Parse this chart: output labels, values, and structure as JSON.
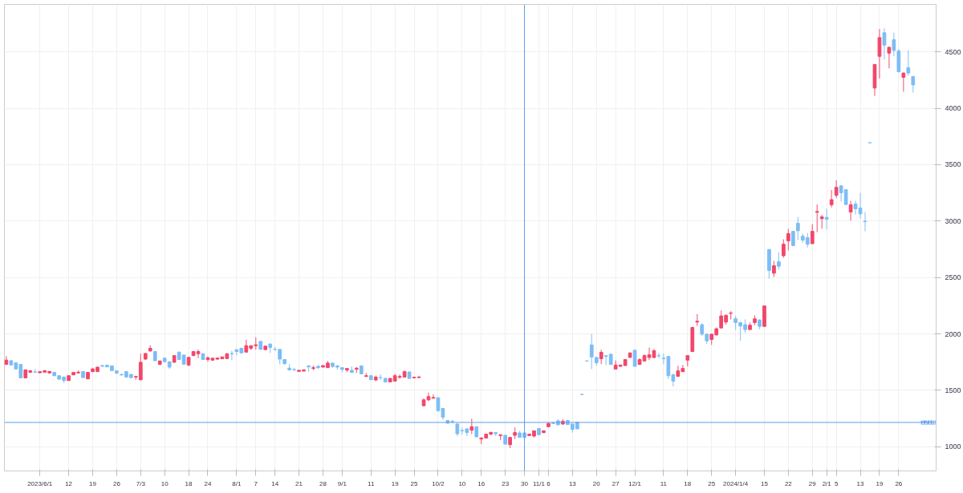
{
  "chart_data": {
    "type": "candlestick",
    "categories": [
      null,
      null,
      null,
      null,
      null,
      null,
      null,
      "2023/6/1",
      null,
      null,
      null,
      null,
      null,
      "12",
      null,
      null,
      null,
      null,
      "19",
      null,
      null,
      null,
      null,
      "26",
      null,
      null,
      null,
      null,
      "7/3",
      null,
      null,
      null,
      null,
      "10",
      null,
      null,
      null,
      null,
      "18",
      null,
      null,
      null,
      "24",
      null,
      null,
      null,
      null,
      null,
      "8/1",
      null,
      null,
      null,
      "7",
      null,
      null,
      null,
      "14",
      null,
      null,
      null,
      null,
      "21",
      null,
      null,
      null,
      null,
      "28",
      null,
      null,
      null,
      "9/1",
      null,
      null,
      null,
      null,
      null,
      "11",
      null,
      null,
      null,
      null,
      "19",
      null,
      null,
      null,
      "25",
      null,
      null,
      null,
      null,
      "10/2",
      null,
      null,
      null,
      null,
      "10",
      null,
      null,
      null,
      "16",
      null,
      null,
      null,
      null,
      "23",
      null,
      null,
      null,
      "30",
      null,
      null,
      "11/1",
      null,
      "6",
      null,
      null,
      null,
      null,
      "13",
      null,
      null,
      null,
      null,
      "20",
      null,
      null,
      null,
      "27",
      null,
      null,
      null,
      "12/1",
      null,
      null,
      null,
      null,
      null,
      "11",
      null,
      null,
      null,
      null,
      "18",
      null,
      null,
      null,
      null,
      "25",
      null,
      null,
      null,
      null,
      "2024/1/4",
      null,
      null,
      null,
      null,
      null,
      "15",
      null,
      null,
      null,
      null,
      "22",
      null,
      null,
      null,
      null,
      "29",
      null,
      null,
      "2/1",
      null,
      "5",
      null,
      null,
      null,
      null,
      "13",
      null,
      null,
      null,
      "19",
      null,
      null,
      null,
      "26",
      null,
      null,
      null
    ],
    "ohlc": [
      [
        1730,
        1804,
        1725,
        1768
      ],
      [
        1763,
        1768,
        1720,
        1725
      ],
      [
        1744,
        1749,
        1685,
        1690
      ],
      [
        1730,
        1735,
        1606,
        1611
      ],
      [
        1611,
        1685,
        1606,
        1682
      ],
      [
        1661,
        1682,
        1654,
        1673
      ],
      [
        1663,
        1690,
        1654,
        1661
      ],
      [
        1656,
        1670,
        1654,
        1666
      ],
      [
        1661,
        1680,
        1656,
        1675
      ],
      [
        1654,
        1670,
        1652,
        1668
      ],
      [
        1659,
        1666,
        1625,
        1630
      ],
      [
        1630,
        1635,
        1594,
        1599
      ],
      [
        1618,
        1625,
        1566,
        1587
      ],
      [
        1587,
        1632,
        1585,
        1630
      ],
      [
        1637,
        1661,
        1635,
        1659
      ],
      [
        1654,
        1678,
        1652,
        1661
      ],
      [
        1666,
        1670,
        1611,
        1613
      ],
      [
        1602,
        1661,
        1599,
        1659
      ],
      [
        1666,
        1701,
        1659,
        1690
      ],
      [
        1666,
        1708,
        1664,
        1706
      ],
      [
        1720,
        1725,
        1711,
        1713
      ],
      [
        1723,
        1725,
        1706,
        1708
      ],
      [
        1718,
        1720,
        1673,
        1675
      ],
      [
        1673,
        1678,
        1642,
        1654
      ],
      [
        1642,
        1645,
        1632,
        1637
      ],
      [
        1666,
        1670,
        1618,
        1618
      ],
      [
        1642,
        1645,
        1606,
        1613
      ],
      [
        1618,
        1630,
        1594,
        1623
      ],
      [
        1594,
        1825,
        1587,
        1749
      ],
      [
        1777,
        1830,
        1770,
        1827
      ],
      [
        1849,
        1899,
        1844,
        1873
      ],
      [
        1844,
        1849,
        1761,
        1763
      ],
      [
        1730,
        1765,
        1725,
        1761
      ],
      [
        1785,
        1792,
        1750,
        1754
      ],
      [
        1754,
        1758,
        1690,
        1706
      ],
      [
        1749,
        1813,
        1745,
        1808
      ],
      [
        1839,
        1844,
        1768,
        1773
      ],
      [
        1813,
        1818,
        1728,
        1732
      ],
      [
        1725,
        1797,
        1713,
        1792
      ],
      [
        1808,
        1849,
        1804,
        1844
      ],
      [
        1825,
        1863,
        1785,
        1844
      ],
      [
        1825,
        1828,
        1770,
        1773
      ],
      [
        1773,
        1801,
        1754,
        1789
      ],
      [
        1768,
        1790,
        1765,
        1785
      ],
      [
        1777,
        1790,
        1770,
        1787
      ],
      [
        1780,
        1799,
        1777,
        1797
      ],
      [
        1782,
        1828,
        1780,
        1825
      ],
      [
        1827,
        1849,
        1768,
        1825
      ],
      [
        1861,
        1863,
        1808,
        1844
      ],
      [
        1873,
        1875,
        1832,
        1832
      ],
      [
        1839,
        1949,
        1837,
        1896
      ],
      [
        1873,
        1900,
        1856,
        1896
      ],
      [
        1896,
        1970,
        1861,
        1904
      ],
      [
        1934,
        1940,
        1863,
        1863
      ],
      [
        1861,
        1895,
        1858,
        1892
      ],
      [
        1911,
        1915,
        1832,
        1880
      ],
      [
        1865,
        1885,
        1849,
        1863
      ],
      [
        1863,
        1866,
        1730,
        1777
      ],
      [
        1773,
        1775,
        1725,
        1737
      ],
      [
        1697,
        1732,
        1673,
        1682
      ],
      [
        1684,
        1701,
        1673,
        1682
      ],
      [
        1668,
        1680,
        1666,
        1678
      ],
      [
        1671,
        1685,
        1668,
        1682
      ],
      [
        1718,
        1720,
        1666,
        1708
      ],
      [
        1694,
        1720,
        1678,
        1701
      ],
      [
        1713,
        1725,
        1690,
        1701
      ],
      [
        1706,
        1723,
        1704,
        1720
      ],
      [
        1701,
        1761,
        1699,
        1742
      ],
      [
        1742,
        1745,
        1701,
        1711
      ],
      [
        1716,
        1725,
        1682,
        1706
      ],
      [
        1701,
        1704,
        1659,
        1685
      ],
      [
        1680,
        1697,
        1659,
        1694
      ],
      [
        1678,
        1713,
        1656,
        1659
      ],
      [
        1687,
        1706,
        1654,
        1697
      ],
      [
        1718,
        1720,
        1645,
        1647
      ],
      [
        1623,
        1654,
        1620,
        1630
      ],
      [
        1630,
        1632,
        1592,
        1594
      ],
      [
        1592,
        1630,
        1582,
        1618
      ],
      [
        1613,
        1642,
        1594,
        1611
      ],
      [
        1606,
        1611,
        1573,
        1575
      ],
      [
        1575,
        1608,
        1573,
        1606
      ],
      [
        1582,
        1647,
        1580,
        1630
      ],
      [
        1616,
        1642,
        1602,
        1623
      ],
      [
        1618,
        1678,
        1616,
        1666
      ],
      [
        1663,
        1666,
        1601,
        1606
      ],
      [
        1611,
        1623,
        1609,
        1616
      ],
      [
        1613,
        1630,
        1611,
        1618
      ],
      [
        1364,
        1428,
        1357,
        1416
      ],
      [
        1416,
        1480,
        1404,
        1445
      ],
      [
        1430,
        1464,
        1428,
        1437
      ],
      [
        1435,
        1438,
        1309,
        1321
      ],
      [
        1340,
        1345,
        1238,
        1262
      ],
      [
        1233,
        1236,
        1207,
        1209
      ],
      [
        1225,
        1238,
        1207,
        1222
      ],
      [
        1202,
        1207,
        1095,
        1116
      ],
      [
        1145,
        1171,
        1107,
        1142
      ],
      [
        1159,
        1164,
        1095,
        1126
      ],
      [
        1147,
        1250,
        1112,
        1178
      ],
      [
        1178,
        1180,
        1085,
        1088
      ],
      [
        1069,
        1083,
        1024,
        1078
      ],
      [
        1078,
        1116,
        1076,
        1112
      ],
      [
        1112,
        1133,
        1102,
        1128
      ],
      [
        1126,
        1130,
        1095,
        1116
      ],
      [
        1100,
        1109,
        1059,
        1107
      ],
      [
        1102,
        1104,
        1019,
        1024
      ],
      [
        1019,
        1088,
        988,
        1083
      ],
      [
        1102,
        1171,
        1069,
        1126
      ],
      [
        1123,
        1142,
        1081,
        1083
      ],
      [
        1123,
        1128,
        1081,
        1083
      ],
      [
        1100,
        1116,
        1097,
        1112
      ],
      [
        1095,
        1145,
        1083,
        1142
      ],
      [
        1162,
        1166,
        1105,
        1107
      ],
      [
        1126,
        1145,
        1119,
        1142
      ],
      [
        1178,
        1214,
        1176,
        1207
      ],
      [
        1209,
        1221,
        1202,
        1207
      ],
      [
        1230,
        1245,
        1190,
        1195
      ],
      [
        1202,
        1245,
        1195,
        1226
      ],
      [
        1233,
        1236,
        1197,
        1197
      ],
      [
        1202,
        1207,
        1126,
        1154
      ],
      [
        1219,
        1223,
        1157,
        1159
      ],
      [
        1464,
        1464,
        1464,
        1464
      ],
      [
        1761,
        1761,
        1761,
        1761
      ],
      [
        1903,
        1999,
        1689,
        1796
      ],
      [
        1792,
        1794,
        1720,
        1744
      ],
      [
        1780,
        1861,
        1732,
        1837
      ],
      [
        1808,
        1811,
        1725,
        1801
      ],
      [
        1820,
        1825,
        1725,
        1730
      ],
      [
        1689,
        1766,
        1684,
        1725
      ],
      [
        1713,
        1725,
        1710,
        1725
      ],
      [
        1720,
        1775,
        1718,
        1773
      ],
      [
        1792,
        1835,
        1790,
        1832
      ],
      [
        1856,
        1859,
        1710,
        1713
      ],
      [
        1730,
        1785,
        1725,
        1773
      ],
      [
        1761,
        1820,
        1754,
        1808
      ],
      [
        1791,
        1880,
        1768,
        1815
      ],
      [
        1791,
        1868,
        1787,
        1851
      ],
      [
        1808,
        1832,
        1785,
        1806
      ],
      [
        1785,
        1827,
        1730,
        1782
      ],
      [
        1801,
        1806,
        1601,
        1630
      ],
      [
        1637,
        1651,
        1535,
        1582
      ],
      [
        1625,
        1718,
        1620,
        1673
      ],
      [
        1666,
        1725,
        1661,
        1694
      ],
      [
        1768,
        1813,
        1713,
        1808
      ],
      [
        1844,
        2063,
        1839,
        2058
      ],
      [
        2105,
        2177,
        2070,
        2113
      ],
      [
        2082,
        2094,
        1982,
        1998
      ],
      [
        1998,
        2005,
        1911,
        1939
      ],
      [
        1951,
        2001,
        1903,
        1998
      ],
      [
        1991,
        2058,
        1987,
        2046
      ],
      [
        2053,
        2208,
        2048,
        2160
      ],
      [
        2105,
        2172,
        2082,
        2165
      ],
      [
        2182,
        2201,
        2129,
        2186
      ],
      [
        2134,
        2160,
        2034,
        2101
      ],
      [
        2101,
        2105,
        1939,
        2070
      ],
      [
        2082,
        2129,
        2010,
        2039
      ],
      [
        2039,
        2101,
        2036,
        2077
      ],
      [
        2101,
        2165,
        2077,
        2134
      ],
      [
        2124,
        2129,
        2041,
        2067
      ],
      [
        2067,
        2253,
        2065,
        2248
      ],
      [
        2748,
        2753,
        2491,
        2562
      ],
      [
        2538,
        2648,
        2505,
        2605
      ],
      [
        2641,
        2724,
        2569,
        2600
      ],
      [
        2693,
        2838,
        2676,
        2795
      ],
      [
        2824,
        2931,
        2740,
        2890
      ],
      [
        2909,
        2914,
        2776,
        2783
      ],
      [
        2980,
        3037,
        2831,
        2914
      ],
      [
        2866,
        2890,
        2807,
        2831
      ],
      [
        2854,
        2895,
        2766,
        2795
      ],
      [
        2800,
        2973,
        2798,
        2909
      ],
      [
        3078,
        3147,
        2902,
        3085
      ],
      [
        3021,
        3056,
        2933,
        3037
      ],
      [
        3033,
        3109,
        2926,
        3016
      ],
      [
        3145,
        3275,
        3121,
        3190
      ],
      [
        3228,
        3361,
        3204,
        3299
      ],
      [
        3313,
        3316,
        3175,
        3251
      ],
      [
        3278,
        3282,
        3140,
        3147
      ],
      [
        3080,
        3180,
        3004,
        3145
      ],
      [
        3152,
        3180,
        3057,
        3109
      ],
      [
        3116,
        3251,
        3021,
        3064
      ],
      [
        2999,
        3080,
        2909,
        2995
      ],
      [
        3694,
        3694,
        3694,
        3694
      ],
      [
        4179,
        4390,
        4108,
        4388
      ],
      [
        4460,
        4702,
        4265,
        4626
      ],
      [
        4669,
        4709,
        4431,
        4559
      ],
      [
        4488,
        4545,
        4353,
        4540
      ],
      [
        4607,
        4669,
        4460,
        4512
      ],
      [
        4507,
        4526,
        4317,
        4324
      ],
      [
        4274,
        4317,
        4146,
        4312
      ],
      [
        4360,
        4514,
        4288,
        4312
      ],
      [
        4281,
        4286,
        4139,
        4207
      ]
    ],
    "colors": [
      "#f2466a",
      "#7dbdf5",
      "#7dbdf5",
      "#7dbdf5",
      "#f2466a",
      "#f2466a",
      "#7dbdf5",
      "#f2466a",
      "#f2466a",
      "#f2466a",
      "#7dbdf5",
      "#7dbdf5",
      "#7dbdf5",
      "#f2466a",
      "#f2466a",
      "#f2466a",
      "#7dbdf5",
      "#f2466a",
      "#f2466a",
      "#f2466a",
      "#7dbdf5",
      "#7dbdf5",
      "#7dbdf5",
      "#7dbdf5",
      "#7dbdf5",
      "#7dbdf5",
      "#7dbdf5",
      "#f2466a",
      "#f2466a",
      "#f2466a",
      "#f2466a",
      "#7dbdf5",
      "#f2466a",
      "#7dbdf5",
      "#7dbdf5",
      "#f2466a",
      "#7dbdf5",
      "#7dbdf5",
      "#f2466a",
      "#f2466a",
      "#f2466a",
      "#7dbdf5",
      "#f2466a",
      "#f2466a",
      "#f2466a",
      "#f2466a",
      "#f2466a",
      "#7dbdf5",
      "#7dbdf5",
      "#7dbdf5",
      "#f2466a",
      "#f2466a",
      "#f2466a",
      "#7dbdf5",
      "#f2466a",
      "#7dbdf5",
      "#7dbdf5",
      "#7dbdf5",
      "#7dbdf5",
      "#7dbdf5",
      "#7dbdf5",
      "#f2466a",
      "#f2466a",
      "#7dbdf5",
      "#f2466a",
      "#7dbdf5",
      "#f2466a",
      "#f2466a",
      "#7dbdf5",
      "#7dbdf5",
      "#7dbdf5",
      "#f2466a",
      "#7dbdf5",
      "#f2466a",
      "#7dbdf5",
      "#f2466a",
      "#7dbdf5",
      "#f2466a",
      "#7dbdf5",
      "#7dbdf5",
      "#f2466a",
      "#f2466a",
      "#f2466a",
      "#f2466a",
      "#7dbdf5",
      "#f2466a",
      "#f2466a",
      "#f2466a",
      "#f2466a",
      "#f2466a",
      "#7dbdf5",
      "#7dbdf5",
      "#7dbdf5",
      "#7dbdf5",
      "#7dbdf5",
      "#7dbdf5",
      "#7dbdf5",
      "#f2466a",
      "#7dbdf5",
      "#f2466a",
      "#f2466a",
      "#f2466a",
      "#7dbdf5",
      "#f2466a",
      "#7dbdf5",
      "#f2466a",
      "#f2466a",
      "#7dbdf5",
      "#7dbdf5",
      "#f2466a",
      "#f2466a",
      "#7dbdf5",
      "#f2466a",
      "#f2466a",
      "#7dbdf5",
      "#7dbdf5",
      "#f2466a",
      "#7dbdf5",
      "#7dbdf5",
      "#7dbdf5",
      "#7dbdf5",
      "#7dbdf5",
      "#7dbdf5",
      "#7dbdf5",
      "#f2466a",
      "#7dbdf5",
      "#7dbdf5",
      "#f2466a",
      "#f2466a",
      "#f2466a",
      "#f2466a",
      "#7dbdf5",
      "#f2466a",
      "#f2466a",
      "#f2466a",
      "#f2466a",
      "#7dbdf5",
      "#7dbdf5",
      "#7dbdf5",
      "#7dbdf5",
      "#f2466a",
      "#f2466a",
      "#f2466a",
      "#f2466a",
      "#f2466a",
      "#7dbdf5",
      "#7dbdf5",
      "#f2466a",
      "#f2466a",
      "#f2466a",
      "#f2466a",
      "#f2466a",
      "#7dbdf5",
      "#7dbdf5",
      "#7dbdf5",
      "#f2466a",
      "#f2466a",
      "#7dbdf5",
      "#f2466a",
      "#7dbdf5",
      "#f2466a",
      "#7dbdf5",
      "#f2466a",
      "#f2466a",
      "#7dbdf5",
      "#7dbdf5",
      "#7dbdf5",
      "#7dbdf5",
      "#f2466a",
      "#f2466a",
      "#f2466a",
      "#7dbdf5",
      "#f2466a",
      "#f2466a",
      "#7dbdf5",
      "#7dbdf5",
      "#f2466a",
      "#7dbdf5",
      "#7dbdf5",
      "#7dbdf5",
      "#7dbdf5",
      "#f2466a",
      "#f2466a",
      "#7dbdf5",
      "#f2466a",
      "#7dbdf5",
      "#7dbdf5",
      "#f2466a",
      "#7dbdf5",
      "#7dbdf5"
    ],
    "ylim": [
      786,
      4920
    ],
    "yticks": [
      1000,
      1500,
      2000,
      2500,
      3000,
      3500,
      4000,
      4500
    ],
    "grid": true,
    "ref_lines": [
      {
        "axis": "y",
        "value": 1216,
        "label": "1216",
        "color": "#5b9bf0"
      },
      {
        "axis": "x",
        "value": "30",
        "color": "#5b9bf0"
      }
    ]
  }
}
